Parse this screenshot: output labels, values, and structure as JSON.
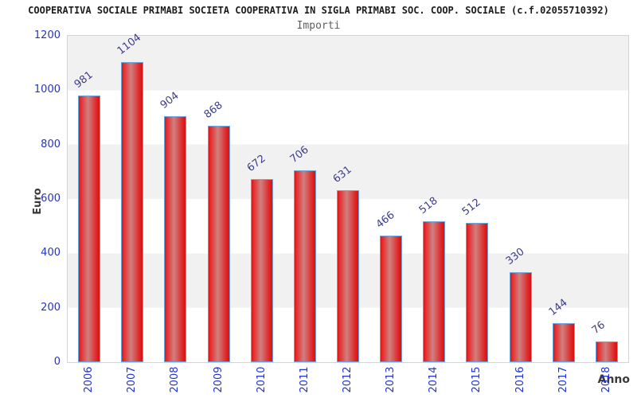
{
  "header": {
    "title": "COOPERATIVA SOCIALE PRIMABI SOCIETA COOPERATIVA IN SIGLA PRIMABI SOC. COOP. SOCIALE (c.f.02055710392)",
    "subtitle": "Importi"
  },
  "chart_data": {
    "type": "bar",
    "title": "Importi",
    "categories": [
      "2006",
      "2007",
      "2008",
      "2009",
      "2010",
      "2011",
      "2012",
      "2013",
      "2014",
      "2015",
      "2016",
      "2017",
      "2018"
    ],
    "values": [
      981,
      1104,
      904,
      868,
      672,
      706,
      631,
      466,
      518,
      512,
      330,
      144,
      76
    ],
    "xlabel": "Anno",
    "ylabel": "Euro",
    "ylim": [
      0,
      1200
    ],
    "yticks": [
      0,
      200,
      400,
      600,
      800,
      1000,
      1200
    ],
    "grid": "horizontal-bands-alternating",
    "legend": "none"
  },
  "colors": {
    "bar_edge": "#e02020",
    "bar_center_highlight": "#d08080",
    "bar_border": "#69a5dd",
    "tick_label_blue": "#2233cc",
    "value_label_navy": "#3c3c8c",
    "axis_title_color": "#3a3a3a",
    "band_gray": "#f1f1f1",
    "band_white": "#ffffff",
    "plot_border": "#d4d4d4",
    "title_color": "#1c1c1c",
    "subtitle_color": "#5f5f5f"
  }
}
